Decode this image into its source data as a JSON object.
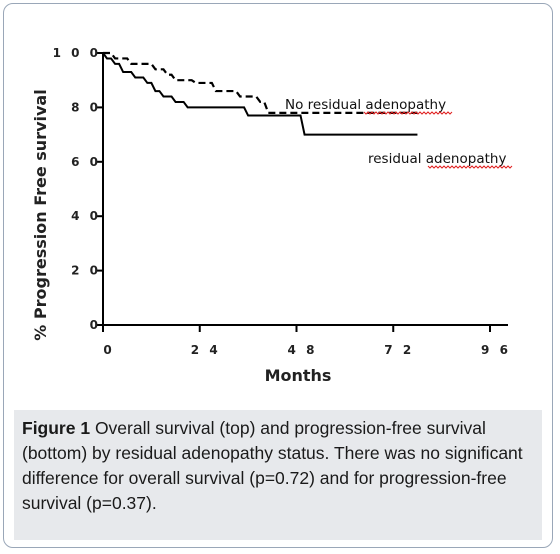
{
  "chart_data": {
    "type": "line",
    "title": "",
    "xlabel": "Months",
    "ylabel": "% Progression Free survival",
    "xlim": [
      0,
      96
    ],
    "ylim": [
      0,
      100
    ],
    "x_ticks": [
      0,
      24,
      48,
      72,
      96
    ],
    "x_tick_labels": [
      "0",
      "2 4",
      "4 8",
      "7 2",
      "9 6"
    ],
    "y_ticks": [
      0,
      20,
      40,
      60,
      80,
      100
    ],
    "y_tick_labels": [
      "0",
      "2 0",
      "4 0",
      "6 0",
      "8 0",
      "1 0 0"
    ],
    "series": [
      {
        "name": "No residual adenopathy",
        "style": "dashed",
        "color": "#000000",
        "points": [
          [
            0,
            100
          ],
          [
            2,
            100
          ],
          [
            3,
            98
          ],
          [
            6,
            98
          ],
          [
            7,
            96
          ],
          [
            12,
            96
          ],
          [
            13,
            94
          ],
          [
            15,
            94
          ],
          [
            16,
            92
          ],
          [
            17,
            92
          ],
          [
            18,
            90
          ],
          [
            22,
            90
          ],
          [
            23,
            89
          ],
          [
            27,
            89
          ],
          [
            28,
            86
          ],
          [
            33,
            86
          ],
          [
            34,
            84
          ],
          [
            38,
            84
          ],
          [
            39,
            82
          ],
          [
            40,
            82
          ],
          [
            41,
            78
          ],
          [
            43,
            78
          ],
          [
            44,
            78
          ],
          [
            78,
            78
          ]
        ]
      },
      {
        "name": "residual adenopathy",
        "style": "solid",
        "color": "#000000",
        "points": [
          [
            0,
            100
          ],
          [
            1,
            98
          ],
          [
            2,
            98
          ],
          [
            3,
            96
          ],
          [
            4,
            96
          ],
          [
            5,
            93
          ],
          [
            7,
            93
          ],
          [
            8,
            91
          ],
          [
            10,
            91
          ],
          [
            11,
            89
          ],
          [
            12,
            89
          ],
          [
            13,
            86
          ],
          [
            14,
            86
          ],
          [
            15,
            84
          ],
          [
            17,
            84
          ],
          [
            18,
            82
          ],
          [
            20,
            82
          ],
          [
            21,
            80
          ],
          [
            35,
            80
          ],
          [
            36,
            77
          ],
          [
            49,
            77
          ],
          [
            50,
            70
          ],
          [
            78,
            70
          ]
        ]
      }
    ]
  },
  "caption": {
    "label": "Figure 1",
    "text": " Overall survival (top) and progression-free survival (bottom) by residual adenopathy status. There was no significant difference for overall survival (p=0.72) and for progression-free survival (p=0.37)."
  }
}
